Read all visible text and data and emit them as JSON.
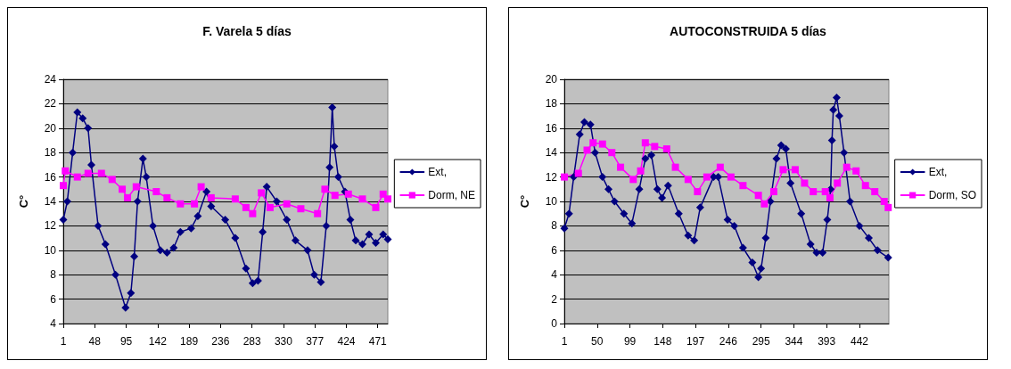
{
  "chart_data": [
    {
      "type": "line",
      "title": "F. Varela 5 días",
      "ylabel": "C°",
      "xlim": [
        1,
        486
      ],
      "xticks": [
        1,
        48,
        95,
        142,
        189,
        236,
        283,
        330,
        377,
        424,
        471
      ],
      "ylim": [
        4,
        24
      ],
      "yticks": [
        4,
        6,
        8,
        10,
        12,
        14,
        16,
        18,
        20,
        22,
        24
      ],
      "grid": "y",
      "legend": "right",
      "line_style": "solid",
      "series": [
        {
          "name": "Ext,",
          "color": "#000080",
          "marker": "diamond",
          "x": [
            1,
            7,
            15,
            22,
            30,
            38,
            43,
            53,
            64,
            79,
            94,
            102,
            107,
            112,
            120,
            125,
            135,
            146,
            156,
            166,
            176,
            192,
            202,
            215,
            222,
            243,
            258,
            274,
            284,
            292,
            299,
            305,
            320,
            335,
            348,
            366,
            376,
            386,
            394,
            399,
            403,
            406,
            412,
            422,
            430,
            438,
            448,
            458,
            468,
            479,
            486
          ],
          "values": [
            12.5,
            14,
            18,
            21.3,
            20.8,
            20,
            17,
            12,
            10.5,
            8,
            5.3,
            6.5,
            9.5,
            14,
            17.5,
            16,
            12,
            10,
            9.8,
            10.2,
            11.5,
            11.8,
            12.8,
            14.8,
            13.6,
            12.5,
            11,
            8.5,
            7.3,
            7.5,
            11.5,
            15.2,
            14,
            12.5,
            10.8,
            10,
            8,
            7.4,
            12,
            16.8,
            21.7,
            18.5,
            16,
            14.8,
            12.5,
            10.8,
            10.5,
            11.3,
            10.6,
            11.3,
            10.9
          ]
        },
        {
          "name": "Dorm, NE",
          "color": "#ff00ff",
          "marker": "square",
          "x": [
            1,
            4,
            22,
            38,
            58,
            74,
            89,
            97,
            110,
            140,
            156,
            176,
            197,
            207,
            222,
            258,
            274,
            284,
            297,
            310,
            335,
            356,
            381,
            392,
            407,
            427,
            448,
            468,
            479,
            486
          ],
          "values": [
            15.3,
            16.5,
            16,
            16.3,
            16.3,
            15.8,
            15,
            14.3,
            15.2,
            14.8,
            14.3,
            13.8,
            13.8,
            15.2,
            14.3,
            14.2,
            13.5,
            13,
            14.7,
            13.5,
            13.8,
            13.4,
            13,
            15,
            14.5,
            14.6,
            14.2,
            13.5,
            14.6,
            14.2
          ]
        }
      ]
    },
    {
      "type": "line",
      "title": "AUTOCONSTRUIDA 5 días",
      "ylabel": "C°",
      "xlim": [
        1,
        486
      ],
      "xticks": [
        1,
        50,
        99,
        148,
        197,
        246,
        295,
        344,
        393,
        442
      ],
      "ylim": [
        0,
        20
      ],
      "yticks": [
        0,
        2,
        4,
        6,
        8,
        10,
        12,
        14,
        16,
        18,
        20
      ],
      "grid": "y",
      "legend": "right",
      "line_style": "solid",
      "series": [
        {
          "name": "Ext,",
          "color": "#000080",
          "marker": "diamond",
          "x": [
            1,
            8,
            15,
            24,
            31,
            40,
            47,
            58,
            67,
            76,
            90,
            102,
            113,
            122,
            131,
            140,
            147,
            156,
            172,
            186,
            195,
            204,
            224,
            231,
            245,
            255,
            268,
            282,
            291,
            295,
            302,
            309,
            318,
            325,
            332,
            339,
            355,
            369,
            378,
            387,
            394,
            399,
            401,
            403,
            408,
            412,
            419,
            428,
            442,
            456,
            469,
            485
          ],
          "values": [
            7.8,
            9,
            12,
            15.5,
            16.5,
            16.3,
            14,
            12,
            11,
            10,
            9,
            8.2,
            11,
            13.5,
            13.8,
            11,
            10.3,
            11.3,
            9,
            7.2,
            6.8,
            9.5,
            12,
            12,
            8.5,
            8,
            6.2,
            5,
            3.8,
            4.5,
            7,
            10,
            13.5,
            14.6,
            14.3,
            11.5,
            9,
            6.5,
            5.8,
            5.8,
            8.5,
            11,
            15,
            17.5,
            18.5,
            17,
            14,
            10,
            8,
            7,
            6,
            5.4
          ]
        },
        {
          "name": "Dorm, SO",
          "color": "#ff00ff",
          "marker": "square",
          "x": [
            1,
            22,
            35,
            44,
            58,
            72,
            85,
            104,
            115,
            122,
            136,
            154,
            167,
            186,
            200,
            214,
            234,
            250,
            268,
            291,
            300,
            314,
            328,
            346,
            360,
            373,
            391,
            398,
            409,
            423,
            437,
            451,
            465,
            479,
            485
          ],
          "values": [
            12,
            12.3,
            14.2,
            14.8,
            14.7,
            14,
            12.8,
            11.8,
            12.5,
            14.8,
            14.5,
            14.3,
            12.8,
            11.8,
            10.8,
            12,
            12.8,
            12,
            11.3,
            10.5,
            9.8,
            10.8,
            12.6,
            12.6,
            11.5,
            10.8,
            10.8,
            10.3,
            11.5,
            12.8,
            12.5,
            11.3,
            10.8,
            10,
            9.5
          ]
        }
      ]
    }
  ]
}
